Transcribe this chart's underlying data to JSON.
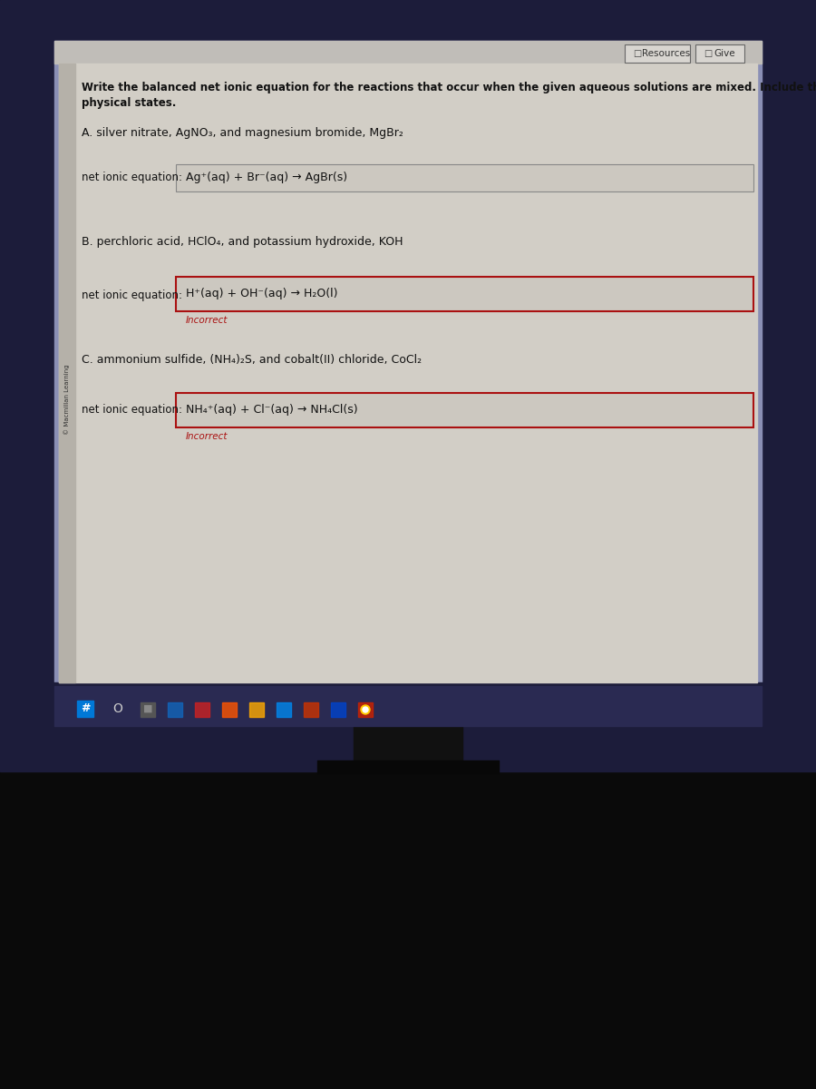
{
  "bg_very_dark": "#0a0a0a",
  "bg_monitor_dark": "#1c1c3a",
  "bg_screen_blue": "#8a8fb5",
  "bg_content": "#d8d4cc",
  "bg_inner_content": "#cdc9c1",
  "bg_sidebar": "#b8b4ac",
  "box_bg_a": "#cbc7bf",
  "box_bg_bc": "#cbc7bf",
  "box_border_a": "#888888",
  "box_border_bc": "#aa1111",
  "taskbar_bg": "#2a2a52",
  "text_dark": "#1a1a1a",
  "text_incorrect": "#aa1111",
  "header_area_bg": "#c8c5be",
  "title_line1": "Write the balanced net ionic equation for the reactions that occur when the given aqueous solutions are mixed. Include the",
  "title_line2": "physical states.",
  "sidebar_label": "© Macmillan Learning",
  "header_resources": "Resources",
  "header_give": "Give",
  "section_A_label": "A. silver nitrate, AgNO₃, and magnesium bromide, MgBr₂",
  "section_A_eq_label": "net ionic equation:",
  "section_A_eq": "Ag⁺(aq) + Br⁻(aq) → AgBr(s)",
  "section_B_label": "B. perchloric acid, HClO₄, and potassium hydroxide, KOH",
  "section_B_eq_label": "net ionic equation:",
  "section_B_eq": "H⁺(aq) + OH⁻(aq) → H₂O(l)",
  "section_B_incorrect": "Incorrect",
  "section_C_label": "C. ammonium sulfide, (NH₄)₂S, and cobalt(II) chloride, CoCl₂",
  "section_C_eq_label": "net ionic equation:",
  "section_C_eq": "NH₄⁺(aq) + Cl⁻(aq) → NH₄Cl(s)",
  "section_C_incorrect": "Incorrect"
}
